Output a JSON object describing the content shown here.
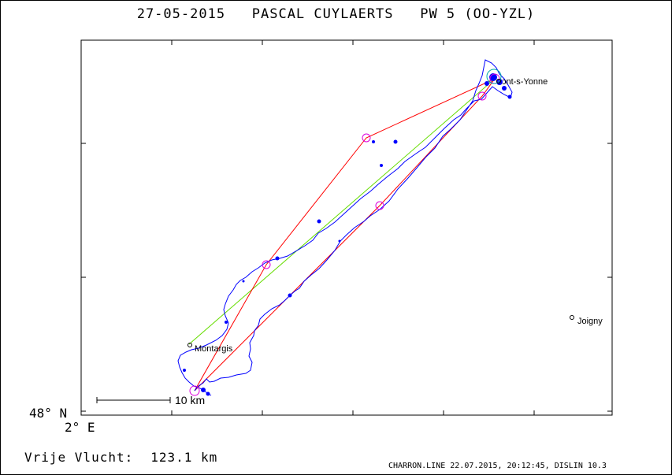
{
  "header": {
    "title": "27-05-2015   PASCAL CUYLAERTS   PW 5 (OO-YZL)"
  },
  "axes": {
    "lat_label": "48° N",
    "lon_label": "2° E"
  },
  "map": {
    "towns": [
      {
        "name": "Montargis"
      },
      {
        "name": "Joigny"
      },
      {
        "name": "Pont-s-Yonne"
      }
    ],
    "scale_label": "10 km",
    "colors": {
      "track": "#0000ff",
      "task": "#ff0000",
      "free_line": "#66dd00",
      "turnpoint": "#dd00dd",
      "start": "#00aaaa"
    }
  },
  "summary": {
    "label": "Vrije Vlucht:",
    "value": "123.1 km"
  },
  "footer": {
    "text": "CHARRON.LINE 22.07.2015, 20:12:45, DISLIN 10.3"
  }
}
